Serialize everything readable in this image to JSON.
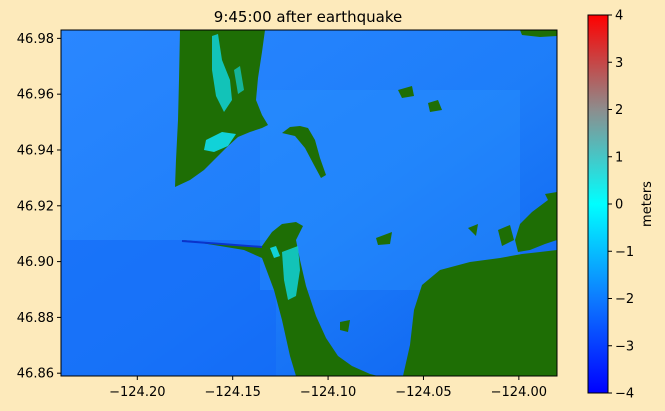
{
  "chart_data": {
    "type": "heatmap",
    "title": "9:45:00 after earthquake",
    "xlabel": "",
    "ylabel": "",
    "xlim": [
      -124.24,
      -123.98
    ],
    "ylim": [
      46.859,
      46.983
    ],
    "x_ticks": [
      -124.2,
      -124.15,
      -124.1,
      -124.05,
      -124.0
    ],
    "x_tick_labels": [
      "−124.20",
      "−124.15",
      "−124.10",
      "−124.05",
      "−124.00"
    ],
    "y_ticks": [
      46.86,
      46.88,
      46.9,
      46.92,
      46.94,
      46.96,
      46.98
    ],
    "y_tick_labels": [
      "46.86",
      "46.88",
      "46.90",
      "46.92",
      "46.94",
      "46.96",
      "46.98"
    ],
    "grid": false,
    "land_color": "#1e6e05",
    "colorbar": {
      "label": "meters",
      "vmin": -4,
      "vmax": 4,
      "ticks": [
        -4,
        -3,
        -2,
        -1,
        0,
        1,
        2,
        3,
        4
      ],
      "tick_labels": [
        "−4",
        "−3",
        "−2",
        "−1",
        "0",
        "1",
        "2",
        "3",
        "4"
      ],
      "colormap_stops": [
        "#0000ff",
        "#0d7bff",
        "#00ffff",
        "#8d8d8d",
        "#ff0000"
      ]
    }
  }
}
